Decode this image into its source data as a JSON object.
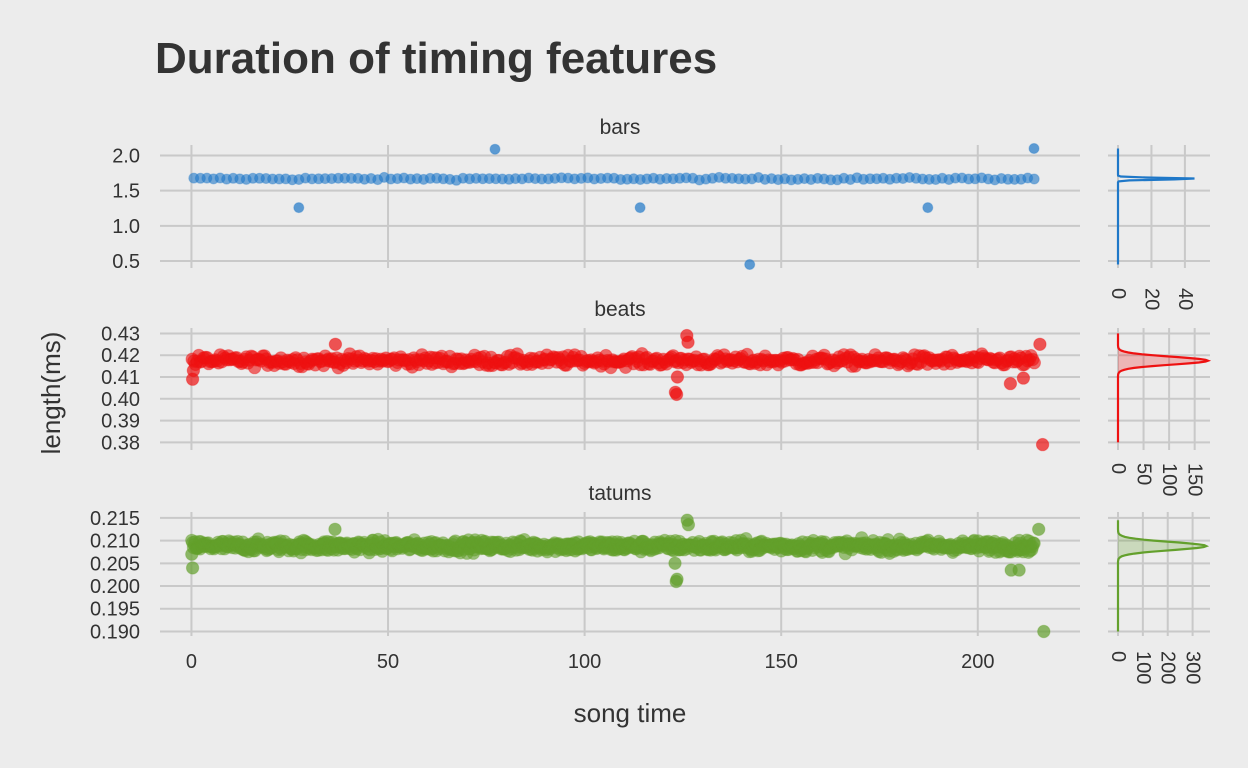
{
  "chart_data": {
    "type": "scatter",
    "title": "Duration of timing features",
    "xlabel": "song time",
    "ylabel": "length(ms)",
    "xlim": [
      -8,
      226
    ],
    "x_ticks": [
      0,
      50,
      100,
      150,
      200
    ],
    "x_tick_labels": [
      "0",
      "50",
      "100",
      "150",
      "200"
    ],
    "grid": true,
    "panels": [
      {
        "name": "bars",
        "color": "#1f78c8",
        "ylim": [
          0.4,
          2.15
        ],
        "y_ticks": [
          0.5,
          1.0,
          1.5,
          2.0
        ],
        "y_tick_labels": [
          "0.5",
          "1.0",
          "1.5",
          "2.0"
        ],
        "baseline": 1.67,
        "noise": 0.012,
        "start": 0.6,
        "step": 1.67,
        "outliers": [
          [
            27.3,
            1.26
          ],
          [
            77.2,
            2.09
          ],
          [
            114.1,
            1.26
          ],
          [
            142.0,
            0.45
          ],
          [
            187.3,
            1.26
          ],
          [
            214.3,
            2.1
          ]
        ],
        "density": {
          "ticks": [
            0,
            20,
            40
          ],
          "tick_labels": [
            "0",
            "20",
            "40"
          ],
          "xmax": 55,
          "peak": 48,
          "sigma": 0.012,
          "support": [
            0.45,
            2.1
          ],
          "fill": false
        }
      },
      {
        "name": "beats",
        "color": "#ee1111",
        "ylim": [
          0.3765,
          0.4325
        ],
        "y_ticks": [
          0.38,
          0.39,
          0.4,
          0.41,
          0.42,
          0.43
        ],
        "y_tick_labels": [
          "0.38",
          "0.39",
          "0.40",
          "0.41",
          "0.42",
          "0.43"
        ],
        "baseline": 0.4175,
        "noise": 0.0018,
        "start": 0.2,
        "step": 0.4175,
        "outliers": [
          [
            0.3,
            0.409
          ],
          [
            0.5,
            0.413
          ],
          [
            123.1,
            0.403
          ],
          [
            123.4,
            0.402
          ],
          [
            123.6,
            0.41
          ],
          [
            126.0,
            0.429
          ],
          [
            126.3,
            0.426
          ],
          [
            36.6,
            0.425
          ],
          [
            208.3,
            0.407
          ],
          [
            211.6,
            0.4095
          ],
          [
            215.8,
            0.425
          ],
          [
            216.5,
            0.379
          ]
        ],
        "density": {
          "ticks": [
            0,
            50,
            100,
            150
          ],
          "tick_labels": [
            "0",
            "50",
            "100",
            "150"
          ],
          "xmax": 180,
          "peak": 176,
          "sigma": 0.0018,
          "support": [
            0.38,
            0.43
          ],
          "fill": true
        }
      },
      {
        "name": "tatums",
        "color": "#63a02c",
        "ylim": [
          0.189,
          0.2163
        ],
        "y_ticks": [
          0.19,
          0.195,
          0.2,
          0.205,
          0.21,
          0.215
        ],
        "y_tick_labels": [
          "0.190",
          "0.195",
          "0.200",
          "0.205",
          "0.210",
          "0.215"
        ],
        "baseline": 0.2088,
        "noise": 0.0009,
        "start": 0.1,
        "step": 0.2088,
        "outliers": [
          [
            0.1,
            0.207
          ],
          [
            0.3,
            0.204
          ],
          [
            123.0,
            0.205
          ],
          [
            123.3,
            0.201
          ],
          [
            123.5,
            0.2015
          ],
          [
            126.1,
            0.2145
          ],
          [
            126.4,
            0.2135
          ],
          [
            36.5,
            0.2125
          ],
          [
            208.5,
            0.2035
          ],
          [
            210.5,
            0.2035
          ],
          [
            215.5,
            0.2125
          ],
          [
            216.8,
            0.19
          ]
        ],
        "density": {
          "ticks": [
            0,
            100,
            200,
            300
          ],
          "tick_labels": [
            "0",
            "100",
            "200",
            "300"
          ],
          "xmax": 370,
          "peak": 355,
          "sigma": 0.0009,
          "support": [
            0.19,
            0.2145
          ],
          "fill": true
        }
      }
    ]
  }
}
